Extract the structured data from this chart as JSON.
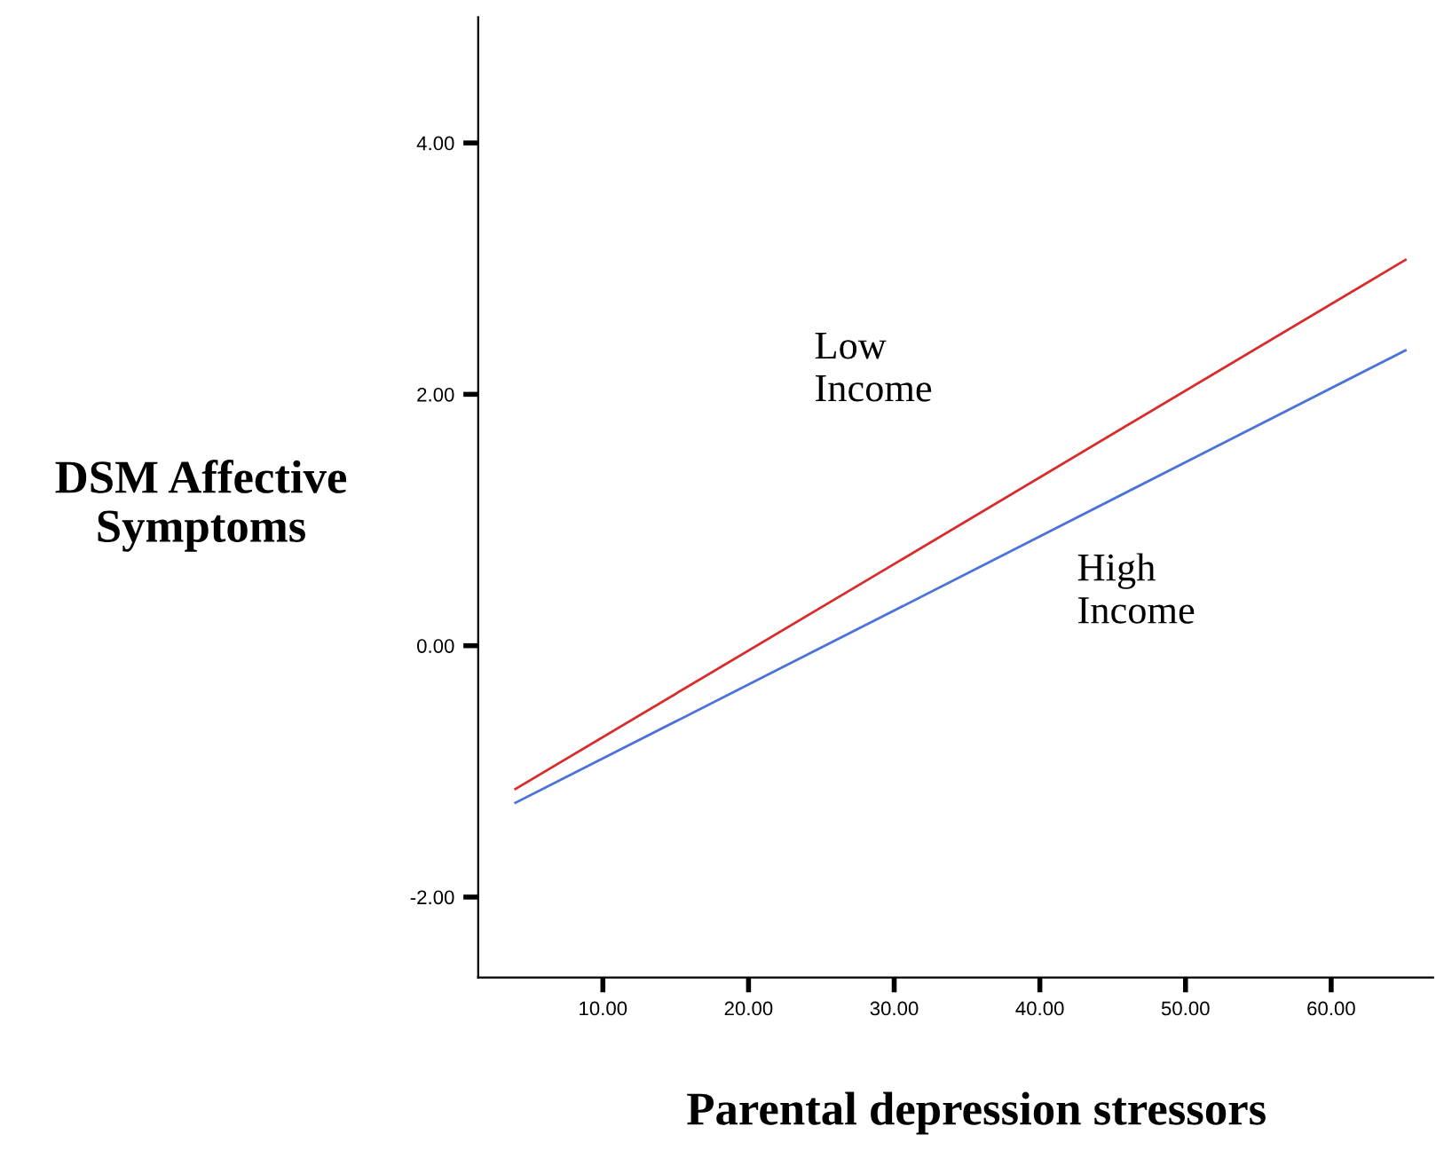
{
  "chart_data": {
    "type": "line",
    "xlabel": "Parental depression stressors",
    "ylabel": "DSM Affective\nSymptoms",
    "series": [
      {
        "x": [
          4.0,
          30.0,
          65.1
        ],
        "values": [
          -1.14,
          0.65,
          3.07
        ],
        "color": "#d92b2b"
      },
      {
        "x": [
          4.0,
          30.0,
          65.1
        ],
        "values": [
          -1.25,
          0.28,
          2.35
        ],
        "color": "#4a72d8"
      }
    ],
    "annotations": [
      "Low\nIncome",
      "High\nIncome"
    ],
    "xlim": [
      1.44,
      67.0
    ],
    "ylim": [
      -2.64,
      5.0
    ],
    "xticks": [
      {
        "value": 10,
        "label": "10.00"
      },
      {
        "value": 20,
        "label": "20.00"
      },
      {
        "value": 30,
        "label": "30.00"
      },
      {
        "value": 40,
        "label": "40.00"
      },
      {
        "value": 50,
        "label": "50.00"
      },
      {
        "value": 60,
        "label": "60.00"
      }
    ],
    "yticks": [
      {
        "value": -2,
        "label": "-2.00"
      },
      {
        "value": 0,
        "label": "0.00"
      },
      {
        "value": 2,
        "label": "2.00"
      },
      {
        "value": 4,
        "label": "4.00"
      }
    ],
    "grid": false,
    "legend": false,
    "marker": "none",
    "line_style": "solid"
  }
}
